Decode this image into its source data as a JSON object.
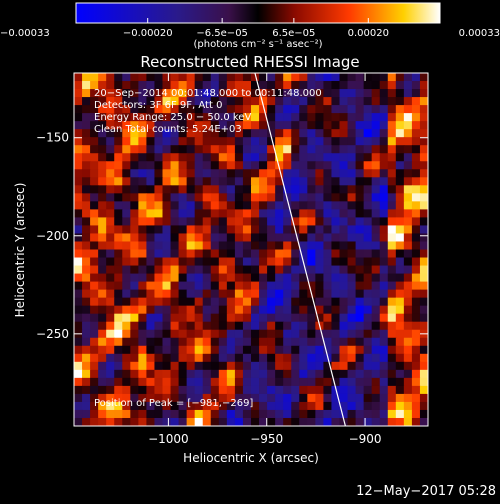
{
  "colorbar": {
    "tick_labels": [
      "−0.00033",
      "−0.00020",
      "−6.5e−05",
      "6.5e−05",
      "0.00020",
      "0.00033"
    ],
    "tick_values": [
      -0.00033,
      -0.0002,
      -6.5e-05,
      6.5e-05,
      0.0002,
      0.00033
    ],
    "range": [
      -0.00033,
      0.00033
    ],
    "unit_label": "(photons cm⁻² s⁻¹ asec⁻²)"
  },
  "chart_data": {
    "type": "heatmap",
    "title": "Reconstructed RHESSI Image",
    "xlabel": "Heliocentric X (arcsec)",
    "ylabel": "Heliocentric Y (arcsec)",
    "xlim": [
      -1048,
      -868
    ],
    "ylim": [
      -297,
      -117
    ],
    "x_ticks": [
      -1000,
      -950,
      -900
    ],
    "x_tick_labels": [
      "−1000",
      "−950",
      "−900"
    ],
    "y_ticks": [
      -250,
      -200,
      -150
    ],
    "y_tick_labels": [
      "−250",
      "−200",
      "−150"
    ],
    "limb_line": {
      "x": [
        -956,
        -910
      ],
      "y": [
        -117,
        -297
      ]
    },
    "peak_position": [
      -981,
      -269
    ],
    "annotations": [
      "20−Sep−2014 00:01:48.000 to 00:11:48.000",
      "Detectors: 3F 6F 9F, Att 0",
      "Energy Range: 25.0 − 50.0 keV",
      "Clean     Total counts: 5.24E+03",
      "Position of Peak = [−981,−269]"
    ]
  },
  "footer": {
    "timestamp": "12−May−2017 05:28"
  }
}
